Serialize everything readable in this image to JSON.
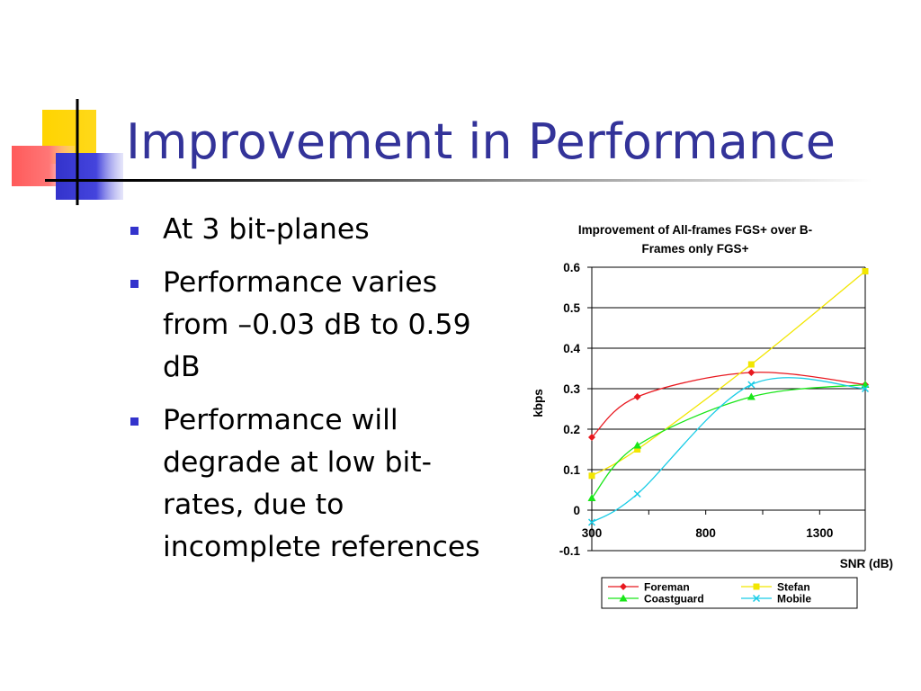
{
  "slide": {
    "title": "Improvement in Performance",
    "bullets": [
      "At 3 bit-planes",
      "Performance varies from –0.03 dB to 0.59 dB",
      "Performance will degrade at low bit-rates, due to incomplete references"
    ]
  },
  "chart_data": {
    "type": "line",
    "title_lines": [
      "Improvement of All-frames FGS+ over B-",
      "Frames only FGS+"
    ],
    "xlabel": "SNR (dB)",
    "ylabel": "kbps",
    "xlim": [
      300,
      1500
    ],
    "ylim": [
      -0.1,
      0.6
    ],
    "xticks": [
      300,
      800,
      1300
    ],
    "yticks": [
      -0.1,
      0,
      0.1,
      0.2,
      0.3,
      0.4,
      0.5,
      0.6
    ],
    "ytick_labels": [
      "-0.1",
      "0",
      "0.1",
      "0.2",
      "0.3",
      "0.4",
      "0.5",
      "0.6"
    ],
    "grid": "horizontal",
    "smooth": true,
    "legend_position": "bottom",
    "series": [
      {
        "name": "Foreman",
        "color": "#e8181f",
        "marker": "diamond",
        "x": [
          300,
          500,
          1000,
          1500
        ],
        "y": [
          0.18,
          0.28,
          0.34,
          0.31
        ]
      },
      {
        "name": "Stefan",
        "color": "#f2e600",
        "marker": "square",
        "x": [
          300,
          500,
          1000,
          1500
        ],
        "y": [
          0.085,
          0.15,
          0.36,
          0.59
        ]
      },
      {
        "name": "Coastguard",
        "color": "#19e619",
        "marker": "triangle",
        "x": [
          300,
          500,
          1000,
          1500
        ],
        "y": [
          0.03,
          0.16,
          0.28,
          0.31
        ]
      },
      {
        "name": "Mobile",
        "color": "#19cce6",
        "marker": "x",
        "x": [
          300,
          500,
          1000,
          1500
        ],
        "y": [
          -0.03,
          0.04,
          0.31,
          0.3
        ]
      }
    ]
  }
}
